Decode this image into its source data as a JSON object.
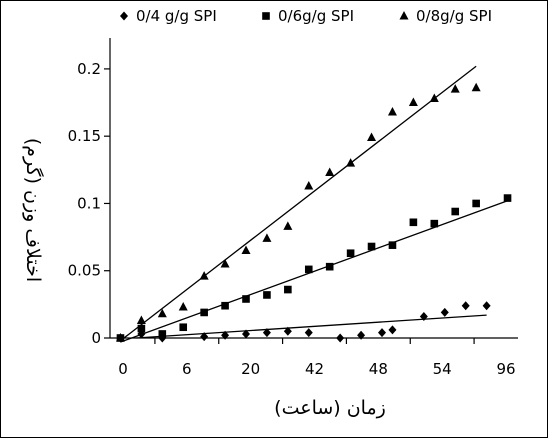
{
  "chart_data": {
    "type": "scatter",
    "xlabel": "زمان (ساعت)",
    "ylabel": "اختلاف وزن (گرم)",
    "x_tick_labels": [
      "0",
      "6",
      "20",
      "42",
      "48",
      "54",
      "96"
    ],
    "y_ticks": [
      0,
      0.05,
      0.1,
      0.15,
      0.2
    ],
    "y_tick_labels": [
      "0",
      "0.05",
      "0.1",
      "0.15",
      "0.2"
    ],
    "ylim": [
      0,
      0.22
    ],
    "legend_position": "top",
    "grid": false,
    "series": [
      {
        "name": "0/4 g/g SPI",
        "marker": "diamond",
        "color": "#000000",
        "points": [
          [
            0,
            0
          ],
          [
            2,
            0.003
          ],
          [
            4,
            0.0
          ],
          [
            8,
            0.001
          ],
          [
            10,
            0.002
          ],
          [
            12,
            0.003
          ],
          [
            14,
            0.004
          ],
          [
            16,
            0.005
          ],
          [
            18,
            0.004
          ],
          [
            21,
            0.0
          ],
          [
            23,
            0.002
          ],
          [
            25,
            0.004
          ],
          [
            26,
            0.006
          ],
          [
            29,
            0.016
          ],
          [
            31,
            0.019
          ],
          [
            33,
            0.024
          ],
          [
            35,
            0.024
          ]
        ],
        "fit": [
          [
            1.5,
            0
          ],
          [
            35,
            0.017
          ]
        ]
      },
      {
        "name": "0/6g/g SPI",
        "marker": "square",
        "color": "#000000",
        "points": [
          [
            0,
            0
          ],
          [
            2,
            0.007
          ],
          [
            4,
            0.003
          ],
          [
            6,
            0.008
          ],
          [
            8,
            0.019
          ],
          [
            10,
            0.024
          ],
          [
            12,
            0.029
          ],
          [
            14,
            0.032
          ],
          [
            16,
            0.036
          ],
          [
            18,
            0.051
          ],
          [
            20,
            0.053
          ],
          [
            22,
            0.063
          ],
          [
            24,
            0.068
          ],
          [
            26,
            0.069
          ],
          [
            28,
            0.086
          ],
          [
            30,
            0.085
          ],
          [
            32,
            0.094
          ],
          [
            34,
            0.1
          ],
          [
            37,
            0.104
          ]
        ],
        "fit": [
          [
            0,
            -0.003
          ],
          [
            37,
            0.102
          ]
        ]
      },
      {
        "name": "0/8g/g SPI",
        "marker": "triangle",
        "color": "#000000",
        "points": [
          [
            0,
            0
          ],
          [
            2,
            0.013
          ],
          [
            4,
            0.018
          ],
          [
            6,
            0.023
          ],
          [
            8,
            0.046
          ],
          [
            10,
            0.055
          ],
          [
            12,
            0.065
          ],
          [
            14,
            0.074
          ],
          [
            16,
            0.083
          ],
          [
            18,
            0.113
          ],
          [
            20,
            0.123
          ],
          [
            22,
            0.13
          ],
          [
            24,
            0.149
          ],
          [
            26,
            0.168
          ],
          [
            28,
            0.175
          ],
          [
            30,
            0.178
          ],
          [
            32,
            0.185
          ],
          [
            34,
            0.186
          ]
        ],
        "fit": [
          [
            0,
            -0.002
          ],
          [
            34,
            0.202
          ]
        ]
      }
    ]
  }
}
